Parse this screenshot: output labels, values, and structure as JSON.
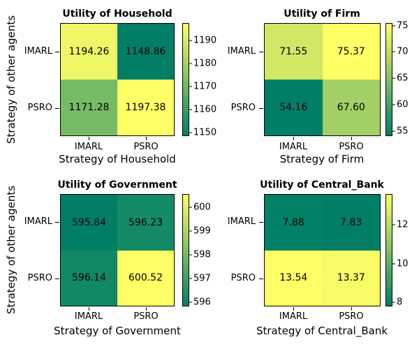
{
  "figure": {
    "background": "#ffffff",
    "colormap": {
      "name": "summer",
      "low_color": "#007f66",
      "high_color": "#ffff66"
    }
  },
  "chart_data": [
    {
      "type": "heatmap",
      "title": "Utility of Household",
      "xlabel": "Strategy of Household",
      "ylabel": "Strategy of other agents",
      "x_categories": [
        "IMARL",
        "PSRO"
      ],
      "y_categories": [
        "IMARL",
        "PSRO"
      ],
      "values": [
        [
          1194.26,
          1148.86
        ],
        [
          1171.28,
          1197.38
        ]
      ],
      "vmin": 1148.86,
      "vmax": 1197.38,
      "cells": [
        {
          "label": "1194.26",
          "color": "#eff766"
        },
        {
          "label": "1148.86",
          "color": "#007f66"
        },
        {
          "label": "1171.28",
          "color": "#76ba66"
        },
        {
          "label": "1197.38",
          "color": "#ffff66"
        }
      ],
      "colorbar": {
        "ticks": [
          {
            "label": "1190",
            "top_pct": 15.2
          },
          {
            "label": "1180",
            "top_pct": 35.8
          },
          {
            "label": "1170",
            "top_pct": 56.4
          },
          {
            "label": "1160",
            "top_pct": 77.0
          },
          {
            "label": "1150",
            "top_pct": 97.7
          }
        ]
      }
    },
    {
      "type": "heatmap",
      "title": "Utility of Firm",
      "xlabel": "Strategy of Firm",
      "ylabel": "",
      "x_categories": [
        "IMARL",
        "PSRO"
      ],
      "y_categories": [
        "IMARL",
        "PSRO"
      ],
      "values": [
        [
          71.55,
          75.37
        ],
        [
          54.16,
          67.6
        ]
      ],
      "vmin": 54.16,
      "vmax": 75.37,
      "cells": [
        {
          "label": "71.55",
          "color": "#d1e866"
        },
        {
          "label": "75.37",
          "color": "#ffff66"
        },
        {
          "label": "54.16",
          "color": "#007f66"
        },
        {
          "label": "67.60",
          "color": "#a2d066"
        }
      ],
      "colorbar": {
        "ticks": [
          {
            "label": "75",
            "top_pct": 1.7
          },
          {
            "label": "70",
            "top_pct": 25.3
          },
          {
            "label": "65",
            "top_pct": 48.9
          },
          {
            "label": "60",
            "top_pct": 72.5
          },
          {
            "label": "55",
            "top_pct": 96.0
          }
        ]
      }
    },
    {
      "type": "heatmap",
      "title": "Utility of Government",
      "xlabel": "Strategy of Government",
      "ylabel": "Strategy of other agents",
      "x_categories": [
        "IMARL",
        "PSRO"
      ],
      "y_categories": [
        "IMARL",
        "PSRO"
      ],
      "values": [
        [
          595.84,
          596.23
        ],
        [
          596.14,
          600.52
        ]
      ],
      "vmin": 595.84,
      "vmax": 600.52,
      "cells": [
        {
          "label": "595.84",
          "color": "#007f66"
        },
        {
          "label": "596.23",
          "color": "#158a66"
        },
        {
          "label": "596.14",
          "color": "#108866"
        },
        {
          "label": "600.52",
          "color": "#ffff66"
        }
      ],
      "colorbar": {
        "ticks": [
          {
            "label": "600",
            "top_pct": 11.1
          },
          {
            "label": "599",
            "top_pct": 32.5
          },
          {
            "label": "598",
            "top_pct": 53.8
          },
          {
            "label": "597",
            "top_pct": 75.2
          },
          {
            "label": "596",
            "top_pct": 96.6
          }
        ]
      }
    },
    {
      "type": "heatmap",
      "title": "Utility of Central_Bank",
      "xlabel": "Strategy of Central_Bank",
      "ylabel": "",
      "x_categories": [
        "IMARL",
        "PSRO"
      ],
      "y_categories": [
        "IMARL",
        "PSRO"
      ],
      "values": [
        [
          7.88,
          7.83
        ],
        [
          13.54,
          13.37
        ]
      ],
      "vmin": 7.83,
      "vmax": 13.54,
      "cells": [
        {
          "label": "7.88",
          "color": "#028166"
        },
        {
          "label": "7.83",
          "color": "#007f66"
        },
        {
          "label": "13.54",
          "color": "#ffff66"
        },
        {
          "label": "13.37",
          "color": "#f7fb66"
        }
      ],
      "colorbar": {
        "ticks": [
          {
            "label": "12",
            "top_pct": 27.0
          },
          {
            "label": "10",
            "top_pct": 62.0
          },
          {
            "label": "8",
            "top_pct": 97.0
          }
        ]
      }
    }
  ]
}
